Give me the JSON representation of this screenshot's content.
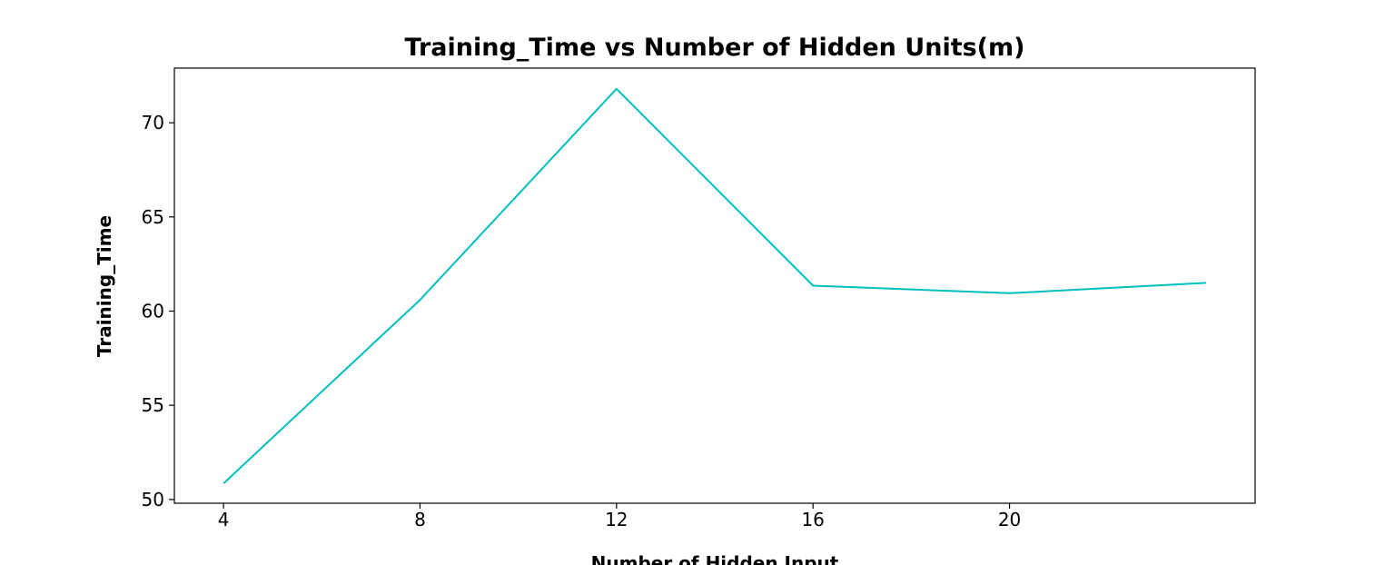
{
  "chart_data": {
    "type": "line",
    "title": "Training_Time vs Number of Hidden Units(m)",
    "xlabel": "Number of Hidden Input",
    "ylabel": "Training_Time",
    "x": [
      4,
      8,
      12,
      16,
      20,
      24
    ],
    "xticks": [
      4,
      8,
      12,
      16,
      20
    ],
    "xtick_labels": [
      "4",
      "8",
      "12",
      "16",
      "20"
    ],
    "xlim": [
      3,
      25
    ],
    "yticks": [
      50,
      55,
      60,
      65,
      70
    ],
    "ytick_labels": [
      "50",
      "55",
      "60",
      "65",
      "70"
    ],
    "ylim": [
      49.8,
      72.9
    ],
    "grid": false,
    "series": [
      {
        "values": [
          50.85,
          60.6,
          71.8,
          61.35,
          60.95,
          61.5
        ],
        "color": "#00bfbf"
      }
    ]
  }
}
